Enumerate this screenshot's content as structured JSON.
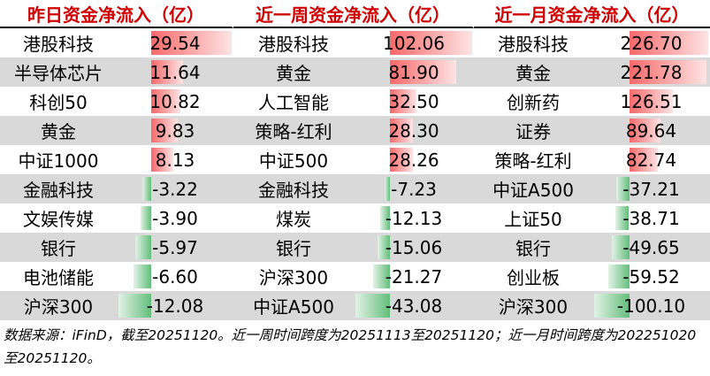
{
  "columns": [
    {
      "title": "昨日资金净流入（亿）",
      "rows": [
        {
          "name": "港股科技",
          "value": 29.54
        },
        {
          "name": "半导体芯片",
          "value": 11.64
        },
        {
          "name": "科创50",
          "value": 10.82
        },
        {
          "name": "黄金",
          "value": 9.83
        },
        {
          "name": "中证1000",
          "value": 8.13
        },
        {
          "name": "金融科技",
          "value": -3.22
        },
        {
          "name": "文娱传媒",
          "value": {
            "value": -3.9,
            "label": "-3.90"
          }
        },
        {
          "name": "银行",
          "value": -5.97
        },
        {
          "name": "电池储能",
          "value": {
            "value": -6.6,
            "label": "-6.60"
          }
        },
        {
          "name": "沪深300",
          "value": -12.08
        }
      ]
    },
    {
      "title": "近一周资金净流入（亿）",
      "rows": [
        {
          "name": "港股科技",
          "value": 102.06
        },
        {
          "name": "黄金",
          "value": {
            "value": 81.9,
            "label": "81.90"
          }
        },
        {
          "name": "人工智能",
          "value": {
            "value": 32.5,
            "label": "32.50"
          }
        },
        {
          "name": "策略-红利",
          "value": {
            "value": 28.3,
            "label": "28.30"
          }
        },
        {
          "name": "中证500",
          "value": 28.26
        },
        {
          "name": "金融科技",
          "value": -7.23
        },
        {
          "name": "煤炭",
          "value": -12.13
        },
        {
          "name": "银行",
          "value": -15.06
        },
        {
          "name": "沪深300",
          "value": -21.27
        },
        {
          "name": "中证A500",
          "value": -43.08
        }
      ]
    },
    {
      "title": "近一月资金净流入（亿）",
      "rows": [
        {
          "name": "港股科技",
          "value": {
            "value": 226.7,
            "label": "226.70"
          }
        },
        {
          "name": "黄金",
          "value": 221.78
        },
        {
          "name": "创新药",
          "value": 126.51
        },
        {
          "name": "证券",
          "value": 89.64
        },
        {
          "name": "策略-红利",
          "value": 82.74
        },
        {
          "name": "中证A500",
          "value": -37.21
        },
        {
          "name": "上证50",
          "value": -38.71
        },
        {
          "name": "银行",
          "value": -49.65
        },
        {
          "name": "创业板",
          "value": -59.52
        },
        {
          "name": "沪深300",
          "value": {
            "value": -100.1,
            "label": "-100.10"
          }
        }
      ]
    }
  ],
  "footnote": "数据来源：iFinD，截至20251120。近一周时间跨度为20251113至20251120；近一月时间跨度为202251020至20251120。"
}
